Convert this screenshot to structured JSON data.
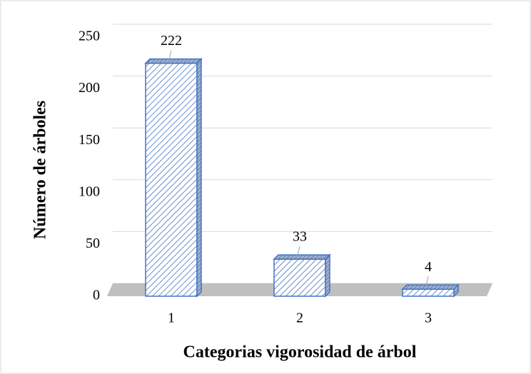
{
  "chart_data": {
    "type": "bar3d",
    "xlabel": "Categorias vigorosidad de  árbol",
    "ylabel": "Número de árboles",
    "categories": [
      "1",
      "2",
      "3"
    ],
    "values": [
      222,
      33,
      4
    ],
    "color": "#4472c4",
    "ylim": [
      0,
      250
    ],
    "yticks": [
      0,
      50,
      100,
      150,
      200,
      250
    ],
    "grid": true
  }
}
